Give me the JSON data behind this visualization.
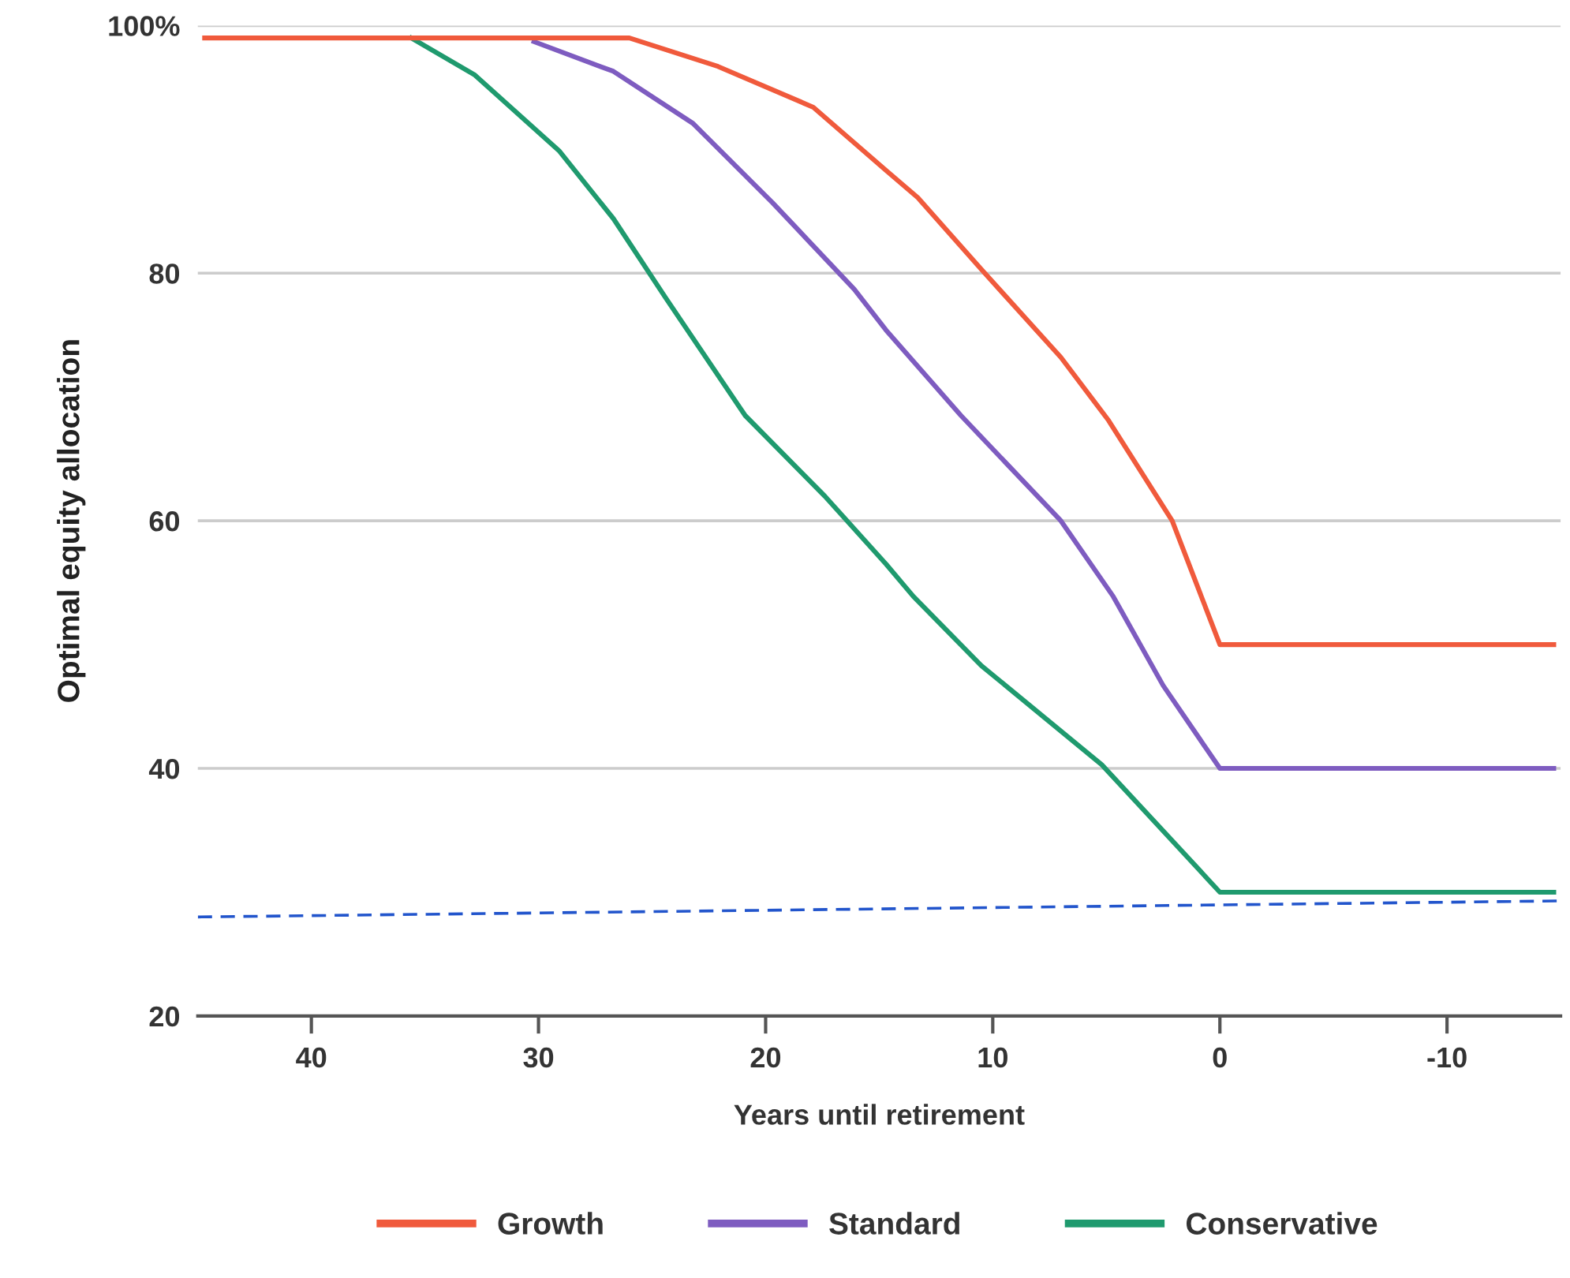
{
  "chart_data": {
    "type": "line",
    "xlabel": "Years until retirement",
    "ylabel": "Optimal equity allocation",
    "xlim": [
      45,
      -15
    ],
    "xticks": [
      40,
      30,
      20,
      10,
      0,
      -10
    ],
    "ylim": [
      20,
      100
    ],
    "yticks": [
      20,
      40,
      60,
      80,
      {
        "value": 100,
        "label": "100%"
      }
    ],
    "grid": "y",
    "legend": "bottom",
    "marker": "none",
    "line_style": "solid",
    "series": [
      {
        "name": "Growth",
        "color": "#f05a3c",
        "x": [
          44.7,
          26,
          22.1,
          17.9,
          14.7,
          13.3,
          10.5,
          7.0,
          4.9,
          2.1,
          0,
          -14.7
        ],
        "values": [
          99,
          99,
          96.7,
          93.4,
          88.3,
          86.1,
          80.3,
          73.2,
          68.1,
          60,
          50,
          50
        ]
      },
      {
        "name": "Standard",
        "color": "#7e5cc0",
        "x": [
          30.2,
          26.7,
          23.2,
          19.7,
          16.1,
          14.7,
          11.4,
          7.0,
          4.7,
          2.5,
          0,
          -14.7
        ],
        "values": [
          98.7,
          96.3,
          92.1,
          85.7,
          78.7,
          75.4,
          68.5,
          60,
          53.9,
          46.7,
          40,
          40
        ]
      },
      {
        "name": "Conservative",
        "color": "#1f9a6e",
        "x": [
          35.6,
          32.8,
          29.1,
          26.7,
          24.4,
          20.9,
          17.4,
          14.7,
          13.5,
          10.5,
          5.2,
          0,
          -14.7
        ],
        "values": [
          99,
          96,
          89.9,
          84.4,
          78,
          68.5,
          62,
          56.5,
          53.9,
          48.3,
          40.3,
          30,
          30
        ]
      },
      {
        "color": "#2255cc",
        "line_style": "dashed",
        "x": [
          45,
          -15
        ],
        "values": [
          28.0,
          29.3
        ]
      }
    ]
  }
}
